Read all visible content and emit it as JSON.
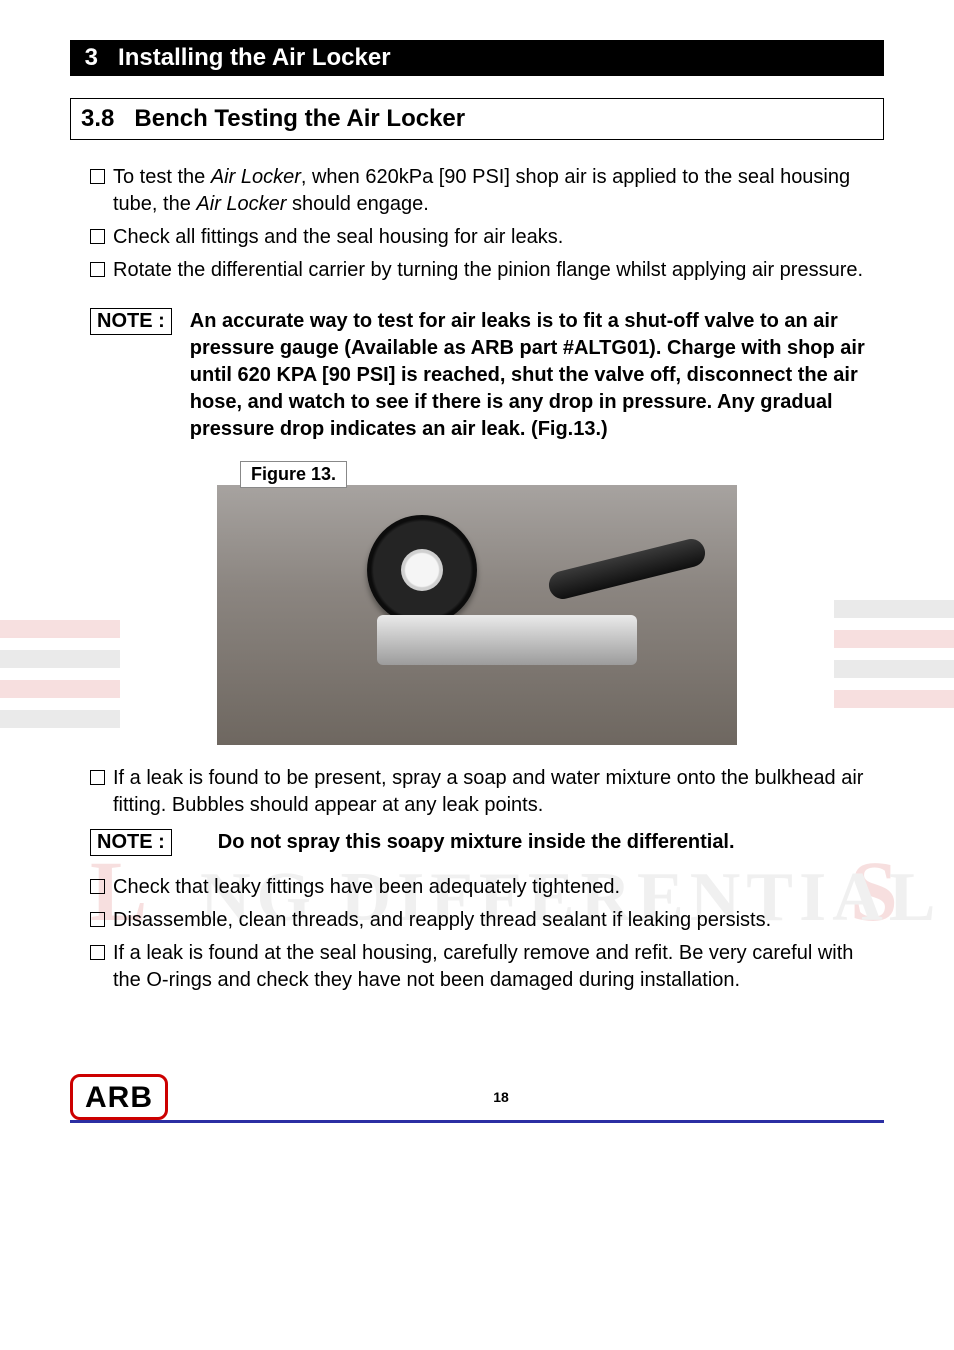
{
  "section": {
    "number": "3",
    "title": "Installing the Air Locker"
  },
  "subsection": {
    "number": "3.8",
    "title": "Bench Testing the Air Locker"
  },
  "checks_a": [
    "To test the <i>Air Locker</i>, when 620kPa [90 PSI] shop air is applied to the seal housing tube, the <i>Air Locker</i> should engage.",
    "Check all fittings and the seal housing for air leaks.",
    "Rotate the differential carrier by turning the pinion flange whilst applying air pressure."
  ],
  "note1": {
    "label": "NOTE :",
    "text": "An accurate way to test for air leaks is to fit a shut-off valve to an air pressure gauge (Available as ARB part #ALTG01).  Charge with shop air until 620 KPA [90 PSI] is reached, shut the valve off, disconnect the air hose, and watch to see if there is any drop in pressure.  Any gradual pressure drop indicates an air leak. (Fig.13.)"
  },
  "figure": {
    "caption": "Figure 13."
  },
  "checks_b": [
    "If a leak is found to be present, spray a soap and water mixture onto the bulkhead air fitting. Bubbles should appear at any leak points."
  ],
  "note2": {
    "label": "NOTE :",
    "text": "Do not spray this soapy mixture inside the differential."
  },
  "checks_c": [
    "Check that leaky fittings have been adequately tightened.",
    "Disassemble, clean threads, and reapply thread sealant if leaking persists.",
    "If a leak is found at the seal housing, carefully remove and refit. Be very careful with the O-rings and check they have not been damaged during installation."
  ],
  "footer": {
    "logo": "ARB",
    "page": "18"
  }
}
